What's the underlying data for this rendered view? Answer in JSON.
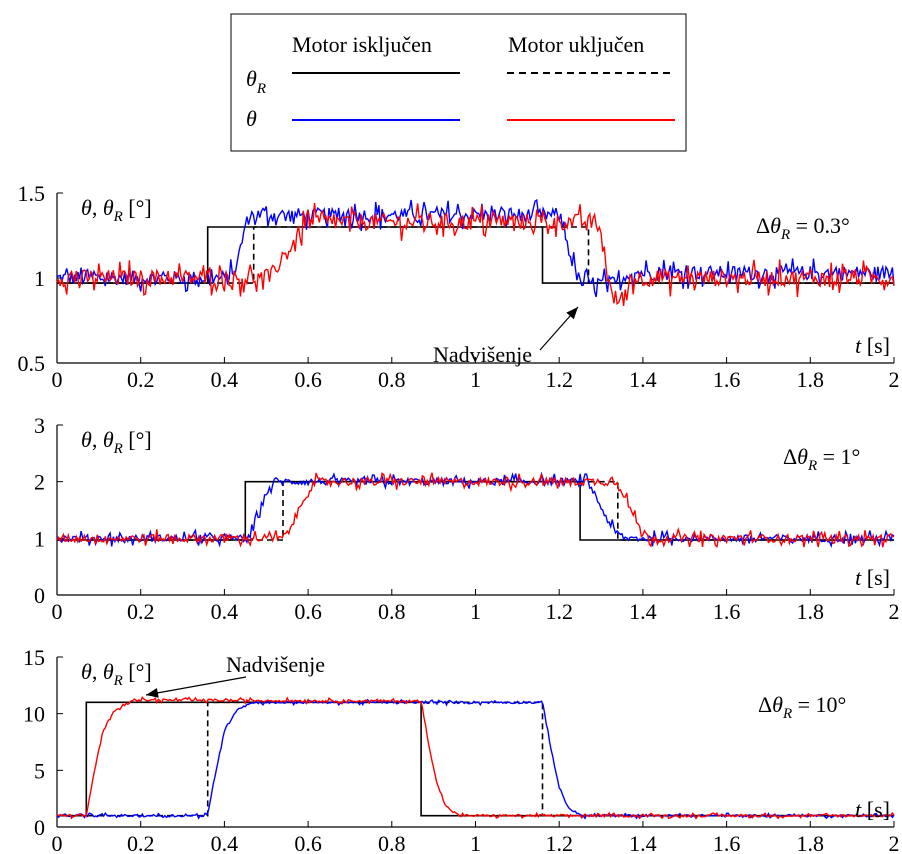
{
  "legend": {
    "col_off": "Motor isključen",
    "col_on": "Motor uključen",
    "row_ref": "θ",
    "row_ref_sub": "R",
    "row_meas": "θ"
  },
  "colors": {
    "reference": "#000000",
    "motor_off": "#0000ff",
    "motor_on": "#ff0000"
  },
  "chart_data": [
    {
      "type": "line",
      "ylabel": "θ, θ_R [°]",
      "ylabel_parts": {
        "a": "θ",
        "b": ", ",
        "c": "θ",
        "sub": "R",
        "unit": " [°]"
      },
      "xlabel_parts": {
        "var": "t",
        "unit": " [s]"
      },
      "annotation_delta": {
        "prefix": "Δ",
        "var": "θ",
        "sub": "R",
        "value": " = 0.3°"
      },
      "annotation_overshoot": "Nadvišenje",
      "xlim": [
        0,
        2
      ],
      "ylim": [
        0.5,
        1.5
      ],
      "xticks": [
        "0",
        "0.2",
        "0.4",
        "0.6",
        "0.8",
        "1",
        "1.2",
        "1.4",
        "1.6",
        "1.8",
        "2"
      ],
      "yticks": [
        "0.5",
        "1",
        "1.5"
      ],
      "series": [
        {
          "role": "ref_off",
          "points": [
            [
              0,
              0.97
            ],
            [
              0.36,
              0.97
            ],
            [
              0.36,
              1.3
            ],
            [
              1.16,
              1.3
            ],
            [
              1.16,
              0.97
            ],
            [
              2,
              0.97
            ]
          ]
        },
        {
          "role": "ref_on",
          "points": [
            [
              0,
              0.97
            ],
            [
              0.47,
              0.97
            ],
            [
              0.47,
              1.3
            ],
            [
              1.27,
              1.3
            ],
            [
              1.27,
              0.97
            ],
            [
              2,
              0.97
            ]
          ]
        },
        {
          "role": "meas_off",
          "base": [
            [
              0,
              1.0
            ],
            [
              0.4,
              1.0
            ],
            [
              0.42,
              1.07
            ],
            [
              0.44,
              1.2
            ],
            [
              0.45,
              1.33
            ],
            [
              2,
              1.33
            ]
          ],
          "steps": [
            [
              0,
              1.0
            ],
            [
              0.41,
              1.0
            ],
            [
              0.43,
              1.07
            ],
            [
              0.44,
              1.2
            ],
            [
              0.45,
              1.3
            ],
            [
              0.46,
              1.37
            ],
            [
              1.2,
              1.37
            ],
            [
              1.21,
              1.3
            ],
            [
              1.23,
              1.1
            ],
            [
              1.25,
              0.97
            ],
            [
              1.35,
              0.97
            ],
            [
              1.36,
              1.03
            ],
            [
              2,
              1.03
            ]
          ],
          "noise": 0.06
        },
        {
          "role": "meas_on",
          "steps": [
            [
              0,
              1.0
            ],
            [
              0.51,
              1.0
            ],
            [
              0.52,
              1.05
            ],
            [
              0.55,
              1.15
            ],
            [
              0.58,
              1.27
            ],
            [
              0.6,
              1.33
            ],
            [
              1.29,
              1.33
            ],
            [
              1.3,
              1.25
            ],
            [
              1.31,
              1.1
            ],
            [
              1.32,
              0.95
            ],
            [
              1.33,
              0.88
            ],
            [
              1.36,
              0.88
            ],
            [
              1.37,
              1.0
            ],
            [
              2,
              1.0
            ]
          ],
          "noise": 0.07
        }
      ]
    },
    {
      "type": "line",
      "ylabel_parts": {
        "a": "θ",
        "b": ", ",
        "c": "θ",
        "sub": "R",
        "unit": " [°]"
      },
      "xlabel_parts": {
        "var": "t",
        "unit": " [s]"
      },
      "annotation_delta": {
        "prefix": "Δ",
        "var": "θ",
        "sub": "R",
        "value": " = 1°"
      },
      "xlim": [
        0,
        2
      ],
      "ylim": [
        0,
        3
      ],
      "xticks": [
        "0",
        "0.2",
        "0.4",
        "0.6",
        "0.8",
        "1",
        "1.2",
        "1.4",
        "1.6",
        "1.8",
        "2"
      ],
      "yticks": [
        "0",
        "1",
        "2",
        "3"
      ],
      "series": [
        {
          "role": "ref_off",
          "points": [
            [
              0,
              0.97
            ],
            [
              0.45,
              0.97
            ],
            [
              0.45,
              2.0
            ],
            [
              1.25,
              2.0
            ],
            [
              1.25,
              0.97
            ],
            [
              2,
              0.97
            ]
          ]
        },
        {
          "role": "ref_on",
          "points": [
            [
              0,
              0.97
            ],
            [
              0.54,
              0.97
            ],
            [
              0.54,
              2.0
            ],
            [
              1.34,
              2.0
            ],
            [
              1.34,
              0.97
            ],
            [
              2,
              0.97
            ]
          ]
        },
        {
          "role": "meas_off",
          "steps": [
            [
              0,
              1.0
            ],
            [
              0.46,
              1.0
            ],
            [
              0.48,
              1.4
            ],
            [
              0.5,
              1.8
            ],
            [
              0.52,
              2.0
            ],
            [
              1.27,
              2.0
            ],
            [
              1.29,
              1.7
            ],
            [
              1.31,
              1.4
            ],
            [
              1.33,
              1.15
            ],
            [
              1.35,
              1.0
            ],
            [
              2,
              1.0
            ]
          ],
          "noise": 0.09
        },
        {
          "role": "meas_on",
          "steps": [
            [
              0,
              1.0
            ],
            [
              0.54,
              1.0
            ],
            [
              0.56,
              1.2
            ],
            [
              0.58,
              1.55
            ],
            [
              0.6,
              1.85
            ],
            [
              0.62,
              2.0
            ],
            [
              1.34,
              2.0
            ],
            [
              1.36,
              1.7
            ],
            [
              1.38,
              1.35
            ],
            [
              1.4,
              1.1
            ],
            [
              1.42,
              1.0
            ],
            [
              2,
              1.0
            ]
          ],
          "noise": 0.1
        }
      ]
    },
    {
      "type": "line",
      "ylabel_parts": {
        "a": "θ",
        "b": ", ",
        "c": "θ",
        "sub": "R",
        "unit": " [°]"
      },
      "xlabel_parts": {
        "var": "t",
        "unit": " [s]"
      },
      "annotation_delta": {
        "prefix": "Δ",
        "var": "θ",
        "sub": "R",
        "value": " = 10°"
      },
      "annotation_overshoot": "Nadvišenje",
      "xlim": [
        0,
        2
      ],
      "ylim": [
        0,
        15
      ],
      "xticks": [
        "0",
        "0.2",
        "0.4",
        "0.6",
        "0.8",
        "1",
        "1.2",
        "1.4",
        "1.6",
        "1.8",
        "2"
      ],
      "yticks": [
        "0",
        "5",
        "10",
        "15"
      ],
      "series": [
        {
          "role": "ref_off",
          "points": [
            [
              0,
              1.0
            ],
            [
              0.07,
              1.0
            ],
            [
              0.07,
              11.0
            ],
            [
              0.87,
              11.0
            ],
            [
              0.87,
              1.0
            ],
            [
              2,
              1.0
            ]
          ]
        },
        {
          "role": "ref_on",
          "points": [
            [
              0,
              1.0
            ],
            [
              0.36,
              1.0
            ],
            [
              0.36,
              11.0
            ],
            [
              1.16,
              11.0
            ],
            [
              1.16,
              1.0
            ],
            [
              2,
              1.0
            ]
          ]
        },
        {
          "role": "meas_off",
          "steps": [
            [
              0,
              1.0
            ],
            [
              0.36,
              1.0
            ],
            [
              0.38,
              5.0
            ],
            [
              0.4,
              8.5
            ],
            [
              0.43,
              10.4
            ],
            [
              0.47,
              11.0
            ],
            [
              1.16,
              11.0
            ],
            [
              1.18,
              7.0
            ],
            [
              1.2,
              3.5
            ],
            [
              1.22,
              1.8
            ],
            [
              1.25,
              1.0
            ],
            [
              2,
              1.0
            ]
          ],
          "noise": 0.15
        },
        {
          "role": "meas_on",
          "steps": [
            [
              0,
              1.0
            ],
            [
              0.07,
              1.0
            ],
            [
              0.09,
              5.0
            ],
            [
              0.11,
              8.5
            ],
            [
              0.14,
              10.4
            ],
            [
              0.18,
              11.2
            ],
            [
              0.22,
              11.2
            ],
            [
              0.87,
              11.1
            ],
            [
              0.89,
              7.0
            ],
            [
              0.91,
              3.5
            ],
            [
              0.93,
              1.8
            ],
            [
              0.96,
              1.0
            ],
            [
              2,
              1.0
            ]
          ],
          "noise": 0.15
        }
      ]
    }
  ]
}
